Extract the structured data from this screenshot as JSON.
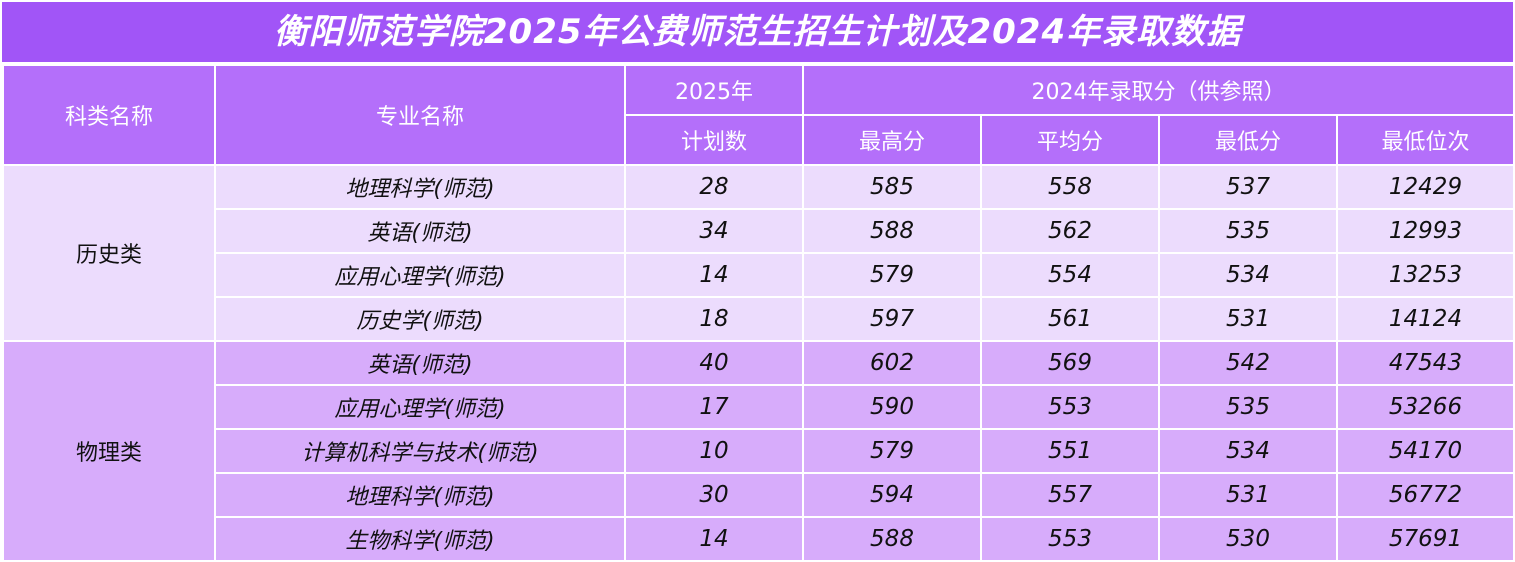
{
  "title": "衡阳师范学院2025年公费师范生招生计划及2024年录取数据",
  "headers": {
    "category": "科类名称",
    "major": "专业名称",
    "plan_year": "2025年",
    "plan_count": "计划数",
    "score_group": "2024年录取分（供参照）",
    "max": "最高分",
    "avg": "平均分",
    "min": "最低分",
    "min_rank": "最低位次"
  },
  "groups": [
    {
      "category": "历史类",
      "rows": [
        {
          "major": "地理科学(师范)",
          "plan": "28",
          "max": "585",
          "avg": "558",
          "min": "537",
          "rank": "12429"
        },
        {
          "major": "英语(师范)",
          "plan": "34",
          "max": "588",
          "avg": "562",
          "min": "535",
          "rank": "12993"
        },
        {
          "major": "应用心理学(师范)",
          "plan": "14",
          "max": "579",
          "avg": "554",
          "min": "534",
          "rank": "13253"
        },
        {
          "major": "历史学(师范)",
          "plan": "18",
          "max": "597",
          "avg": "561",
          "min": "531",
          "rank": "14124"
        }
      ]
    },
    {
      "category": "物理类",
      "rows": [
        {
          "major": "英语(师范)",
          "plan": "40",
          "max": "602",
          "avg": "569",
          "min": "542",
          "rank": "47543"
        },
        {
          "major": "应用心理学(师范)",
          "plan": "17",
          "max": "590",
          "avg": "553",
          "min": "535",
          "rank": "53266"
        },
        {
          "major": "计算机科学与技术(师范)",
          "plan": "10",
          "max": "579",
          "avg": "551",
          "min": "534",
          "rank": "54170"
        },
        {
          "major": "地理科学(师范)",
          "plan": "30",
          "max": "594",
          "avg": "557",
          "min": "531",
          "rank": "56772"
        },
        {
          "major": "生物科学(师范)",
          "plan": "14",
          "max": "588",
          "avg": "553",
          "min": "530",
          "rank": "57691"
        }
      ]
    }
  ]
}
